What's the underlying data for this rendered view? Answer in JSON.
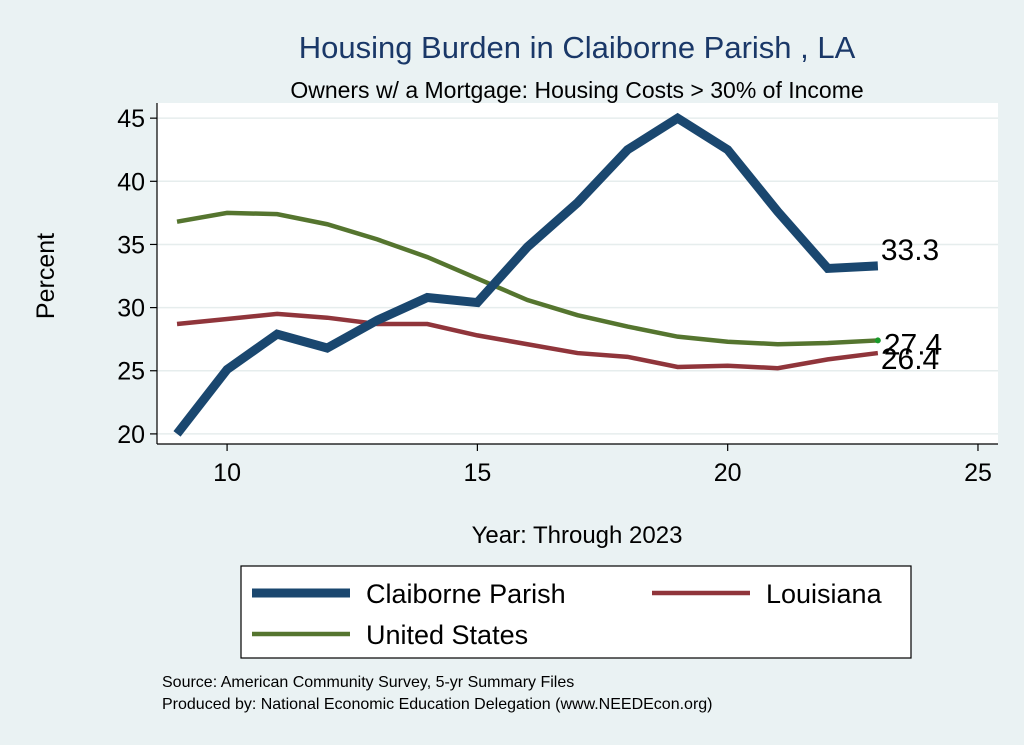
{
  "chart_data": {
    "type": "line",
    "title": "Housing Burden in Claiborne Parish , LA",
    "subtitle": "Owners w/ a Mortgage: Housing Costs > 30% of Income",
    "xlabel": "Year: Through 2023",
    "ylabel": "Percent",
    "xlim": [
      8.6,
      25.4
    ],
    "ylim": [
      19.2,
      46.2
    ],
    "xticks": [
      10,
      15,
      20,
      25
    ],
    "yticks": [
      20,
      25,
      30,
      35,
      40,
      45
    ],
    "grid": true,
    "legend_position": "bottom",
    "x": [
      9,
      10,
      11,
      12,
      13,
      14,
      15,
      16,
      17,
      18,
      19,
      20,
      21,
      22,
      23
    ],
    "series": [
      {
        "name": "Claiborne Parish",
        "color": "#1a476f",
        "width": "thick",
        "values": [
          20.0,
          25.1,
          27.9,
          26.8,
          29.0,
          30.8,
          30.4,
          34.8,
          38.3,
          42.5,
          45.0,
          42.5,
          37.6,
          33.1,
          33.3
        ],
        "end_label": "33.3"
      },
      {
        "name": "Louisiana",
        "color": "#90353b",
        "width": "medium",
        "values": [
          28.7,
          29.1,
          29.5,
          29.2,
          28.7,
          28.7,
          27.8,
          27.1,
          26.4,
          26.1,
          25.3,
          25.4,
          25.2,
          25.9,
          26.4
        ],
        "end_label": "26.4"
      },
      {
        "name": "United States",
        "color": "#55752f",
        "width": "medium",
        "values": [
          36.8,
          37.5,
          37.4,
          36.6,
          35.4,
          34.0,
          32.3,
          30.6,
          29.4,
          28.5,
          27.7,
          27.3,
          27.1,
          27.2,
          27.4
        ],
        "end_label": "27.4"
      }
    ],
    "source_lines": [
      "Source: American Community Survey, 5-yr Summary Files",
      "Produced by: National Economic Education Delegation (www.NEEDEcon.org)"
    ]
  }
}
